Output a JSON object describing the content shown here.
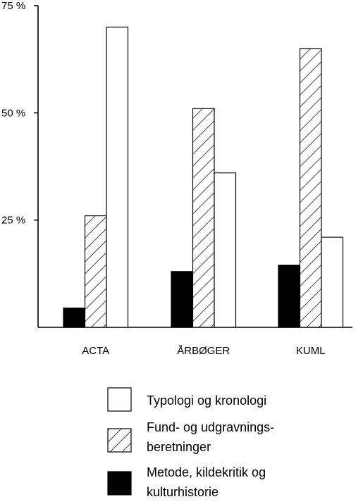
{
  "chart_data": {
    "type": "bar",
    "categories": [
      "ACTA",
      "ÅRBØGER",
      "KUML"
    ],
    "series": [
      {
        "name": "Metode, kildekritik og kulturhistorie",
        "values": [
          4.5,
          13,
          14.5
        ],
        "fill": "#000000",
        "legend_lines": [
          "Metode, kildekritik og",
          "kulturhistorie"
        ]
      },
      {
        "name": "Fund- og udgravnings-beretninger",
        "values": [
          26,
          51,
          65
        ],
        "fill": "hatch",
        "legend_lines": [
          "Fund- og udgravnings-",
          "beretninger"
        ]
      },
      {
        "name": "Typologi og kronologi",
        "values": [
          70,
          36,
          21
        ],
        "fill": "#ffffff",
        "legend_lines": [
          "Typologi og kronologi"
        ]
      }
    ],
    "yticks": [
      {
        "value": 75,
        "label": "75 %"
      },
      {
        "value": 50,
        "label": "50 %"
      },
      {
        "value": 25,
        "label": "25 %"
      }
    ],
    "ylim": [
      0,
      75
    ],
    "title": "",
    "xlabel": "",
    "ylabel": "",
    "grid": false,
    "legend_order": [
      2,
      1,
      0
    ],
    "legend_position": "bottom"
  }
}
